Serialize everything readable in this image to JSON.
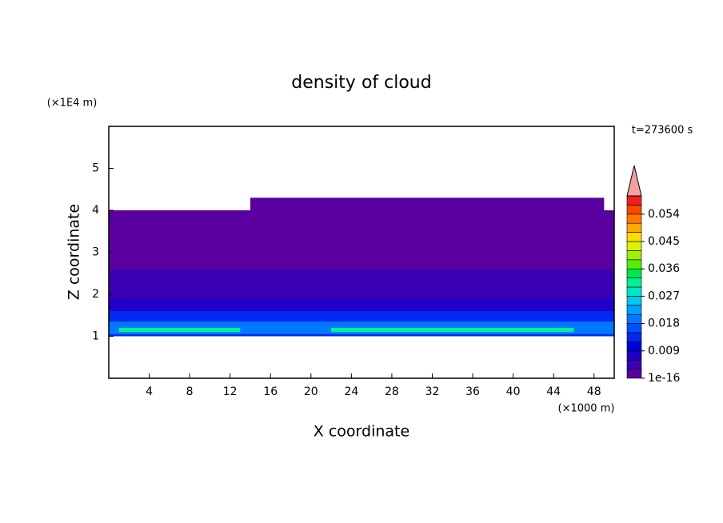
{
  "chart_data": {
    "type": "contour",
    "title": "density of cloud",
    "xlabel": "X coordinate",
    "ylabel": "Z coordinate",
    "x_unit": "(×1000 m)",
    "y_unit": "(×1E4 m)",
    "time_label": "t=273600 s",
    "xlim": [
      0,
      50
    ],
    "xticks": [
      4,
      8,
      12,
      16,
      20,
      24,
      28,
      32,
      36,
      40,
      44,
      48
    ],
    "ylim": [
      0,
      6
    ],
    "yticks": [
      1,
      2,
      3,
      4,
      5
    ],
    "layers": [
      {
        "x": [
          0,
          50
        ],
        "z": [
          1,
          4
        ],
        "level": 0
      },
      {
        "x": [
          14,
          49
        ],
        "z": [
          4,
          4.3
        ],
        "level": 0
      },
      {
        "x": [
          0,
          50
        ],
        "z": [
          1,
          2.6
        ],
        "level": 1
      },
      {
        "x": [
          0,
          50
        ],
        "z": [
          1,
          1.9
        ],
        "level": 2
      },
      {
        "x": [
          0,
          50
        ],
        "z": [
          1,
          1.6
        ],
        "level": 4
      },
      {
        "x": [
          0,
          50
        ],
        "z": [
          1.05,
          1.35
        ],
        "level": 6
      },
      {
        "x": [
          1,
          13
        ],
        "z": [
          1.1,
          1.2
        ],
        "level": 10
      },
      {
        "x": [
          22,
          46
        ],
        "z": [
          1.1,
          1.2
        ],
        "level": 10
      }
    ],
    "colorbar": {
      "clim": [
        0,
        0.06
      ],
      "ticks": [
        {
          "value": 1e-16,
          "label": "1e-16"
        },
        0.009,
        0.018,
        0.027,
        0.036,
        0.045,
        0.054
      ],
      "colors": [
        "#5a00a0",
        "#3c00b4",
        "#1e00c8",
        "#0000dc",
        "#0028f0",
        "#0050ff",
        "#0078ff",
        "#00a0ff",
        "#00c8f0",
        "#00e6c8",
        "#00f096",
        "#00e650",
        "#50f000",
        "#a0f000",
        "#dcf000",
        "#ffdc00",
        "#ffaa00",
        "#ff7800",
        "#ff4600",
        "#f01e1e"
      ],
      "over_color": "#f4a0a0"
    }
  }
}
